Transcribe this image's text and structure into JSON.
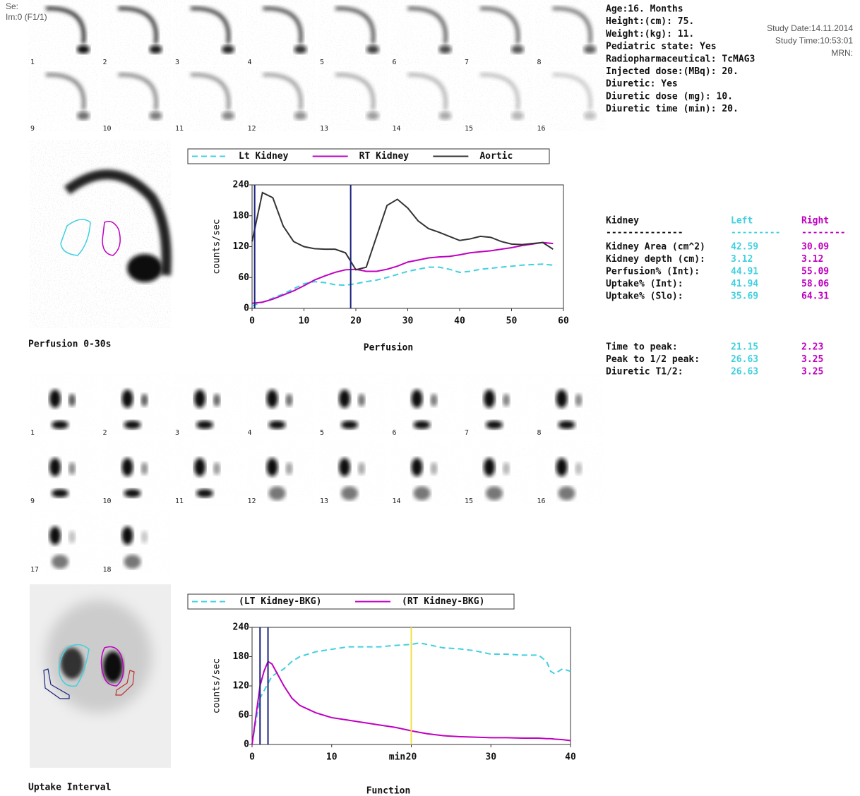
{
  "header": {
    "series": "Se:",
    "image": "Im:0 (F1/1)"
  },
  "patient_info": [
    "Age:16. Months",
    "Height:(cm): 75.",
    "Weight:(kg): 11.",
    "Pediatric state: Yes",
    "Radiopharmaceutical:  TcMAG3",
    "Injected dose:(MBq): 20.",
    "Diuretic:  Yes",
    "Diuretic dose (mg): 10.",
    "Diuretic time (min): 20."
  ],
  "study_info": [
    "Study Date:14.11.2014",
    "Study Time:10:53:01",
    "MRN:"
  ],
  "perfusion_frames": [
    1,
    2,
    3,
    4,
    5,
    6,
    7,
    8,
    9,
    10,
    11,
    12,
    13,
    14,
    15,
    16
  ],
  "function_frames": [
    1,
    2,
    3,
    4,
    5,
    6,
    7,
    8,
    9,
    10,
    11,
    12,
    13,
    14,
    15,
    16,
    17,
    18
  ],
  "image_captions": [
    "Perfusion 0-30s",
    "Uptake Interval"
  ],
  "results": {
    "header": [
      "Kidney",
      "Left",
      "Right"
    ],
    "separator": [
      "--------------",
      "---------",
      "--------"
    ],
    "rows": [
      [
        "Kidney Area (cm^2)",
        42.59,
        30.09
      ],
      [
        "Kidney depth (cm):",
        3.12,
        3.12
      ],
      [
        "Perfusion% (Int):",
        44.91,
        55.09
      ],
      [
        "Uptake% (Int):",
        41.94,
        58.06
      ],
      [
        "Uptake% (Slo):",
        35.69,
        64.31
      ]
    ],
    "timing_rows": [
      [
        "Time to peak:",
        21.15,
        2.23
      ],
      [
        "Peak to 1/2 peak:",
        26.63,
        3.25
      ],
      [
        "Diuretic T1/2:",
        26.63,
        3.25
      ]
    ]
  },
  "chart_data": [
    {
      "type": "line",
      "title": "Perfusion",
      "ylabel": "counts/sec",
      "x": [
        0,
        2,
        4,
        6,
        8,
        10,
        12,
        14,
        16,
        18,
        20,
        22,
        24,
        26,
        28,
        30,
        32,
        34,
        36,
        38,
        40,
        42,
        44,
        46,
        48,
        50,
        52,
        54,
        56,
        58
      ],
      "series": [
        {
          "name": "Lt Kidney",
          "color": "#40d0e0",
          "dashed": true,
          "values": [
            5,
            12,
            20,
            28,
            38,
            48,
            52,
            50,
            46,
            45,
            48,
            52,
            55,
            60,
            66,
            72,
            76,
            80,
            80,
            76,
            70,
            72,
            76,
            78,
            80,
            82,
            84,
            85,
            86,
            84
          ]
        },
        {
          "name": "RT Kidney",
          "color": "#c000c0",
          "dashed": false,
          "values": [
            10,
            12,
            18,
            26,
            34,
            44,
            55,
            63,
            70,
            75,
            76,
            72,
            72,
            76,
            82,
            90,
            94,
            98,
            100,
            101,
            104,
            108,
            110,
            112,
            115,
            118,
            122,
            125,
            128,
            126
          ]
        },
        {
          "name": "Aortic",
          "color": "#333333",
          "dashed": false,
          "values": [
            130,
            225,
            215,
            160,
            130,
            120,
            116,
            115,
            115,
            108,
            75,
            80,
            140,
            200,
            212,
            195,
            170,
            155,
            148,
            140,
            132,
            135,
            140,
            138,
            130,
            125,
            124,
            126,
            128,
            115
          ]
        }
      ],
      "markers": [
        {
          "x": 0.5,
          "color": "#1a237e"
        },
        {
          "x": 19,
          "color": "#1a237e"
        }
      ],
      "xlim": [
        0,
        60
      ],
      "xticks": [
        0,
        10,
        20,
        30,
        40,
        50,
        60
      ],
      "ylim": [
        0,
        240
      ],
      "yticks": [
        0,
        60,
        120,
        180,
        240
      ]
    },
    {
      "type": "line",
      "title": "Function",
      "xlabel": "min",
      "ylabel": "counts/sec",
      "x": [
        0,
        0.5,
        1,
        1.5,
        2,
        2.5,
        3,
        4,
        5,
        6,
        8,
        10,
        12,
        14,
        16,
        18,
        20,
        21,
        22,
        24,
        26,
        28,
        30,
        32,
        34,
        36,
        37,
        37.5,
        38,
        39,
        40
      ],
      "series": [
        {
          "name": "(LT Kidney-BKG)",
          "color": "#40d0e0",
          "dashed": true,
          "values": [
            0,
            50,
            95,
            110,
            125,
            140,
            145,
            155,
            170,
            180,
            190,
            195,
            200,
            200,
            200,
            203,
            205,
            208,
            205,
            198,
            196,
            192,
            185,
            185,
            183,
            183,
            170,
            150,
            145,
            155,
            150
          ]
        },
        {
          "name": "(RT Kidney-BKG)",
          "color": "#c000c0",
          "dashed": false,
          "values": [
            0,
            60,
            120,
            150,
            170,
            165,
            150,
            120,
            95,
            80,
            65,
            55,
            50,
            45,
            40,
            35,
            28,
            25,
            22,
            18,
            16,
            15,
            14,
            14,
            13,
            13,
            12,
            12,
            11,
            10,
            8
          ]
        }
      ],
      "markers": [
        {
          "x": 1,
          "color": "#1a237e"
        },
        {
          "x": 2,
          "color": "#1a237e"
        },
        {
          "x": 20,
          "color": "#f0e040"
        }
      ],
      "xlim": [
        0,
        40
      ],
      "xticks": [
        0,
        10,
        20,
        30,
        40
      ],
      "ylim": [
        0,
        240
      ],
      "yticks": [
        0,
        60,
        120,
        180,
        240
      ]
    }
  ]
}
